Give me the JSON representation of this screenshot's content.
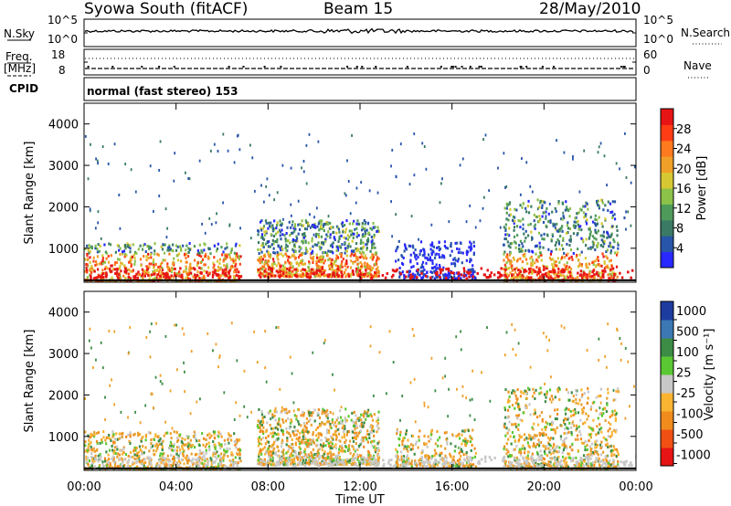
{
  "header": {
    "station": "Syowa South (fitACF)",
    "beam": "Beam 15",
    "date": "28/May/2010"
  },
  "meta_panels": {
    "nsky_label": "N.Sky",
    "nsearch_label": "N.Search",
    "freq_label_1": "Freq.",
    "freq_label_2": "[MHz]",
    "nave_label": "Nave",
    "cpid_label": "CPID",
    "nsky_ticks": [
      "10^5",
      "10^0"
    ],
    "nsearch_ticks": [
      "10^5",
      "10^0"
    ],
    "freq_ticks": [
      "18",
      "8"
    ],
    "nave_ticks": [
      "60",
      "0"
    ],
    "cpid_text": "normal (fast stereo) 153"
  },
  "chart_data": [
    {
      "type": "heatmap",
      "name": "power-panel",
      "xlabel": "",
      "ylabel": "Slant Range [km]",
      "xlim": [
        0,
        24
      ],
      "ylim": [
        180,
        4500
      ],
      "yticks": [
        1000,
        2000,
        3000,
        4000
      ],
      "colorbar": {
        "label": "Power [dB]",
        "range": [
          0,
          32
        ],
        "ticks": [
          "4",
          "8",
          "12",
          "16",
          "20",
          "24",
          "28"
        ],
        "colors": [
          "#2828ff",
          "#2855aa",
          "#3a7a64",
          "#4e9a5a",
          "#8cc24a",
          "#d6c832",
          "#f0a028",
          "#ff7a1e",
          "#ff3c14",
          "#e61414"
        ]
      },
      "echo_regions": [
        {
          "t0": 0.0,
          "t1": 6.8,
          "r0": 180,
          "r1": 1150,
          "level": "mixed"
        },
        {
          "t0": 7.5,
          "t1": 12.8,
          "r0": 350,
          "r1": 1700,
          "level": "strong"
        },
        {
          "t0": 13.5,
          "t1": 17.0,
          "r0": 300,
          "r1": 1200,
          "level": "weak"
        },
        {
          "t0": 18.2,
          "t1": 23.2,
          "r0": 250,
          "r1": 2200,
          "level": "mixed"
        }
      ]
    },
    {
      "type": "heatmap",
      "name": "velocity-panel",
      "xlabel": "Time UT",
      "ylabel": "Slant Range [km]",
      "xlim": [
        0,
        24
      ],
      "ylim": [
        180,
        4500
      ],
      "xticks": [
        "00:00",
        "04:00",
        "08:00",
        "12:00",
        "16:00",
        "20:00",
        "00:00"
      ],
      "yticks": [
        1000,
        2000,
        3000,
        4000
      ],
      "colorbar": {
        "label": "Velocity [m s⁻¹]",
        "ticks": [
          "1000",
          "500",
          "100",
          "25",
          "-25",
          "-100",
          "-500",
          "-1000"
        ],
        "colors": [
          "#1e3ca0",
          "#3c78b4",
          "#3c8c46",
          "#5ac832",
          "#c8c8c8",
          "#fab432",
          "#f08c1e",
          "#f05014",
          "#e61414"
        ]
      }
    }
  ]
}
